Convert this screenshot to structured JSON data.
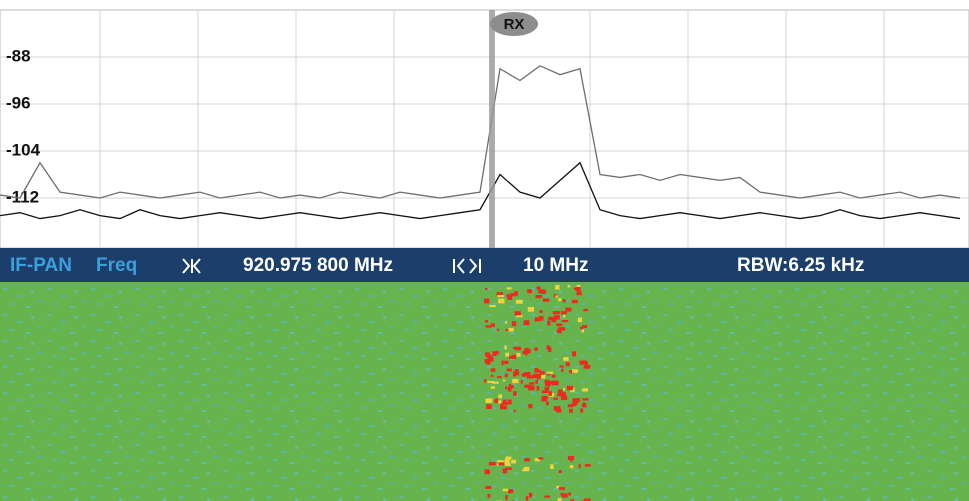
{
  "chart_data": {
    "type": "line",
    "categories": [
      null,
      null,
      null,
      null,
      null,
      null,
      null,
      null,
      null,
      null,
      null,
      null,
      null,
      null,
      null,
      null,
      null,
      null,
      null,
      null,
      null,
      null,
      null,
      null,
      null,
      null,
      null,
      null,
      null,
      null,
      null,
      null,
      null,
      null,
      null,
      null,
      null,
      null,
      null,
      null,
      null,
      null,
      null,
      null,
      null,
      null,
      null,
      null,
      null
    ],
    "series": [
      {
        "color": "#6e6e6e",
        "values": [
          -111.5,
          -112,
          -106,
          -111,
          -111.5,
          -112,
          -111,
          -111.5,
          -112,
          -111.5,
          -111,
          -112,
          -111.5,
          -111,
          -112,
          -111.5,
          -112,
          -111,
          -111.5,
          -112,
          -111,
          -111.5,
          -112,
          -111.5,
          -111,
          -90,
          -92,
          -89.5,
          -91,
          -90,
          -108,
          -108.5,
          -108,
          -109,
          -108,
          -108.5,
          -109,
          -108.5,
          -111,
          -111.5,
          -112,
          -111.5,
          -111,
          -112,
          -111.5,
          -111,
          -112,
          -111.5,
          -112
        ]
      },
      {
        "color": "#111111",
        "values": [
          -115,
          -114.5,
          -115.5,
          -115,
          -114,
          -115,
          -115.5,
          -114,
          -115,
          -115.5,
          -115,
          -114.5,
          -115,
          -115.5,
          -115,
          -114.5,
          -115,
          -115.5,
          -115,
          -114.5,
          -115,
          -115.5,
          -115,
          -114.5,
          -114,
          -108,
          -111,
          -112,
          -109,
          -106,
          -114,
          -115,
          -115.5,
          -115,
          -114.5,
          -115,
          -115.5,
          -115,
          -114.5,
          -115,
          -115.5,
          -115,
          -114,
          -115,
          -115.5,
          -115,
          -114.5,
          -115,
          -115.5
        ]
      }
    ],
    "ylim": [
      -120,
      -80
    ],
    "yticks": [
      -88,
      -96,
      -104,
      -112
    ],
    "grid": true,
    "marker": {
      "label": "RX"
    }
  },
  "status_bar": {
    "mode": "IF-PAN",
    "freq_label": "Freq",
    "center_frequency": "920.975 800 MHz",
    "span": "10 MHz",
    "rbw": "RBW:6.25 kHz"
  }
}
